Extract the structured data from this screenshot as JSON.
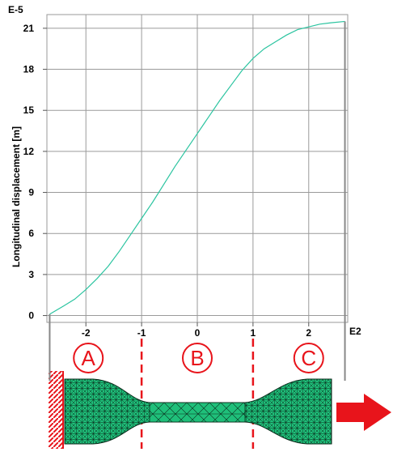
{
  "chart_data": {
    "type": "line",
    "title": "",
    "xlabel": "",
    "ylabel": "Longitudinal displacement [m]",
    "x_exponent_label": "E2",
    "y_exponent_label": "E-5",
    "xlim": [
      -2.7,
      2.7
    ],
    "ylim": [
      -0.5,
      22
    ],
    "x_ticks": [
      -2,
      -1,
      0,
      1,
      2
    ],
    "y_ticks": [
      0,
      3,
      6,
      9,
      12,
      15,
      18,
      21
    ],
    "x_tick_labels": [
      "-2",
      "-1",
      "0",
      "1",
      "2"
    ],
    "y_tick_labels": [
      "0",
      "3",
      "6",
      "9",
      "12",
      "15",
      "18",
      "21"
    ],
    "grid": true,
    "line_color": "#2bc4a0",
    "series": [
      {
        "x": [
          -2.65,
          -2.4,
          -2.2,
          -2.0,
          -1.8,
          -1.6,
          -1.4,
          -1.2,
          -1.0,
          -0.8,
          -0.6,
          -0.4,
          -0.2,
          0.0,
          0.2,
          0.4,
          0.6,
          0.8,
          1.0,
          1.2,
          1.4,
          1.6,
          1.8,
          2.0,
          2.2,
          2.4,
          2.65
        ],
        "y": [
          0.1,
          0.7,
          1.2,
          1.9,
          2.7,
          3.6,
          4.7,
          5.9,
          7.1,
          8.3,
          9.6,
          10.9,
          12.1,
          13.3,
          14.5,
          15.7,
          16.8,
          17.9,
          18.8,
          19.5,
          20.0,
          20.5,
          20.9,
          21.1,
          21.3,
          21.4,
          21.5
        ]
      }
    ]
  },
  "regions": {
    "boundaries_x": [
      -1,
      1
    ],
    "labels": [
      "A",
      "B",
      "C"
    ],
    "color": "#e8141b"
  },
  "specimen": {
    "mesh_fill": "#1fbf7a",
    "mesh_line": "#0a2a1a",
    "clamp_color": "#e8141b",
    "arrow_color": "#e8141b"
  }
}
